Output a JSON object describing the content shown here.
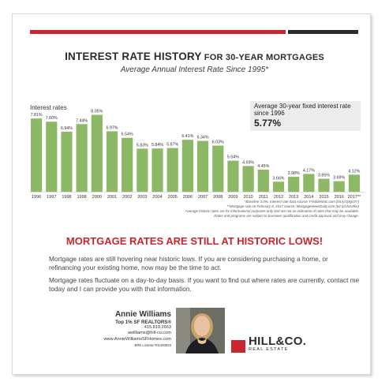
{
  "title_main": "INTEREST RATE HISTORY",
  "title_small": " FOR 30-YEAR MORTGAGES",
  "subtitle": "Average Annual Interest Rate Since 1995*",
  "callout": {
    "text": "Average 30-year fixed interest rate since 1996",
    "value": "5.77%"
  },
  "chart_data": {
    "type": "bar",
    "ylabel": "Interest rates",
    "categories": [
      "1996",
      "1997",
      "1998",
      "1998",
      "2000",
      "2001",
      "2002",
      "2003",
      "2004",
      "2005",
      "2006",
      "2007",
      "2008",
      "2009",
      "2010",
      "2011",
      "2012",
      "2013",
      "2014",
      "2015",
      "2016",
      "2017**"
    ],
    "values": [
      7.81,
      7.6,
      6.94,
      7.44,
      8.05,
      6.97,
      6.54,
      5.83,
      5.84,
      5.87,
      6.41,
      6.34,
      6.03,
      5.04,
      4.69,
      4.45,
      3.66,
      3.98,
      4.17,
      3.85,
      3.69,
      4.12
    ],
    "value_labels": [
      "7.81%",
      "7.60%",
      "6.94%",
      "7.44%",
      "8.05%",
      "6.97%",
      "6.54%",
      "5.83%",
      "5.84%",
      "5.87%",
      "6.41%",
      "6.34%",
      "6.03%",
      "5.04%",
      "4.69%",
      "4.45%",
      "3.66%",
      "3.98%",
      "4.17%",
      "3.85%",
      "3.69%",
      "4.12%"
    ],
    "bar_color": "#8db967",
    "grid": false
  },
  "notes": [
    "*Baseline 3.0%. Interest rate data source: FreddieMac.com (bit.ly/1j9gOtY)",
    "**Mortgage rate on February 8, 2017 source: MortgageNewsDaily.com (bit.ly/1hxv9lm)",
    "Average historic rates are for informational purposes only and are not an indication of rates that may be available.",
    "Rates and programs are subject to borrower qualification and credit approval and may change."
  ],
  "headline": "MORTGAGE RATES ARE STILL AT HISTORIC LOWS!",
  "paragraph1": "Mortgage rates are still hovering near historic lows. If you are considering purchasing a home, or refinancing your existing home, now may be the time to act.",
  "paragraph2": "Mortgage rates fluctuate on a day-to-day basis. If you want to find out where rates are currently, contact me today and I can provide you with that information.",
  "agent": {
    "name": "Annie Williams",
    "role": "Top 1% SF REALTORS®",
    "phone": "415.819.2663",
    "email": "awilliams@hill-co.com",
    "website": "www.AnnieWilliamsSFHomes.com",
    "license": "BRE License #01393923"
  },
  "logo": {
    "name": "HILL&CO.",
    "tagline": "REAL ESTATE"
  },
  "colors": {
    "accent_red": "#c8262e",
    "dark": "#2b2b2b",
    "bar_green": "#8db967"
  }
}
